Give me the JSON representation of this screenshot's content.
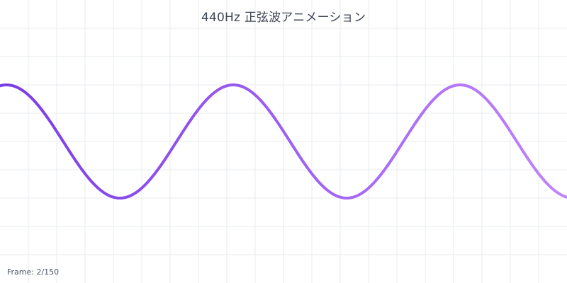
{
  "title": "440Hz 正弦波アニメーション",
  "frame": {
    "text": "Frame: 2/150",
    "current": 2,
    "total": 150
  },
  "colors": {
    "background": "#ffffff",
    "grid": "#e9ebef",
    "wave_start": "#7a3be6",
    "wave_end": "#c084fc",
    "title": "#3f4652"
  },
  "wave": {
    "type": "sine",
    "frequency_hz": 440,
    "cycles_visible": 2.5
  }
}
